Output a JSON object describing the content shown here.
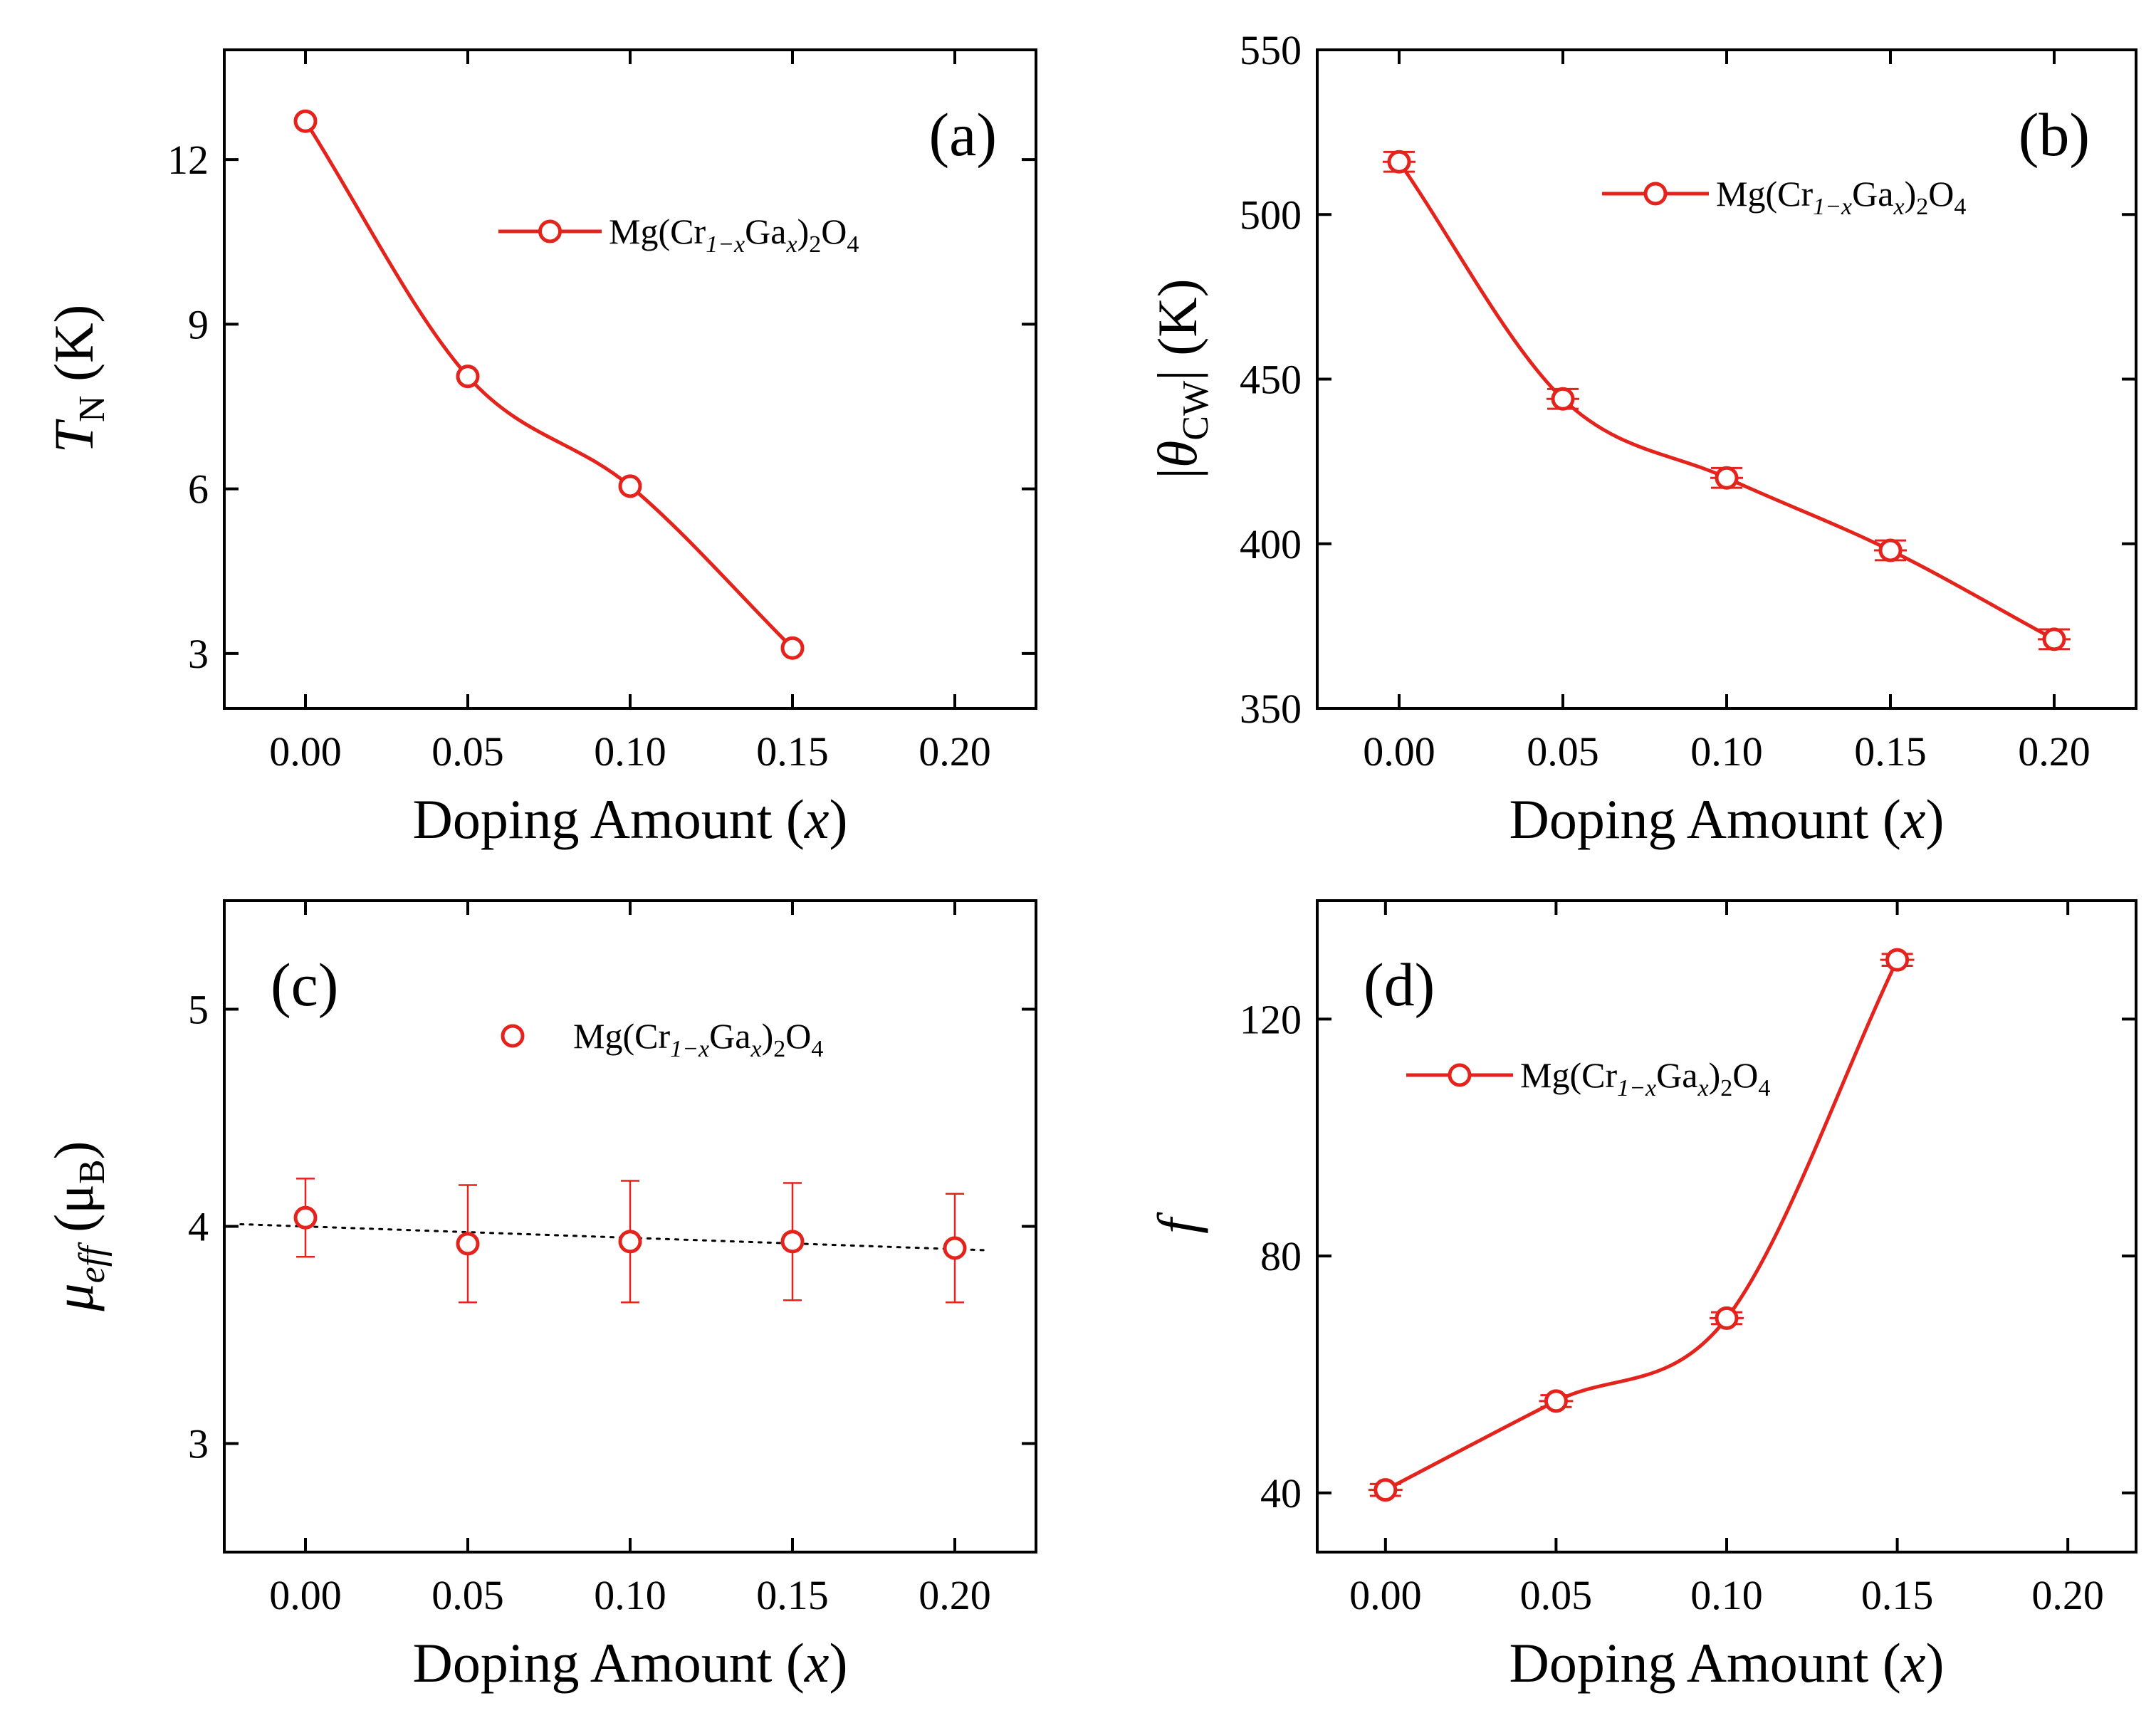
{
  "colors": {
    "series": "#e3231c",
    "axis": "#000000",
    "fit_line": "#000000",
    "background": "#ffffff"
  },
  "legend_text": {
    "base": "Mg(Cr",
    "sub1": "1−x",
    "mid": "Ga",
    "sub2": "x",
    "close": ")",
    "sub3": "2",
    "o": "O",
    "sub4": "4"
  },
  "xlabel": {
    "text": "Doping Amount (",
    "var": "x",
    "close": ")"
  },
  "chart_data": [
    {
      "panel": "(a)",
      "type": "line",
      "ylabel": {
        "main": "T",
        "sub": "N",
        "unit": " (K)"
      },
      "x": [
        0.0,
        0.05,
        0.1,
        0.15
      ],
      "y": [
        12.7,
        8.05,
        6.05,
        3.1
      ],
      "yerr": null,
      "xlim": [
        -0.025,
        0.225
      ],
      "ylim": [
        2.0,
        14.0
      ],
      "xticks": [
        "0.00",
        "0.05",
        "0.10",
        "0.15",
        "0.20"
      ],
      "xtick_values": [
        0.0,
        0.05,
        0.1,
        0.15,
        0.2
      ],
      "yticks": [
        "3",
        "6",
        "9",
        "12"
      ],
      "ytick_values": [
        3,
        6,
        9,
        12
      ],
      "series_name": "Mg(Cr1−xGax)2O4",
      "legend": "upper-right",
      "smooth": true,
      "fit_line": null
    },
    {
      "panel": "(b)",
      "type": "line",
      "ylabel": {
        "pre": "|",
        "main": "θ",
        "sub": "CW",
        "unit": "| (K)"
      },
      "x": [
        0.0,
        0.05,
        0.1,
        0.15,
        0.2
      ],
      "y": [
        516,
        444,
        420,
        398,
        371
      ],
      "yerr": [
        3,
        3,
        3,
        3,
        3
      ],
      "xerr": 0.005,
      "xlim": [
        -0.025,
        0.225
      ],
      "ylim": [
        350,
        550
      ],
      "xticks": [
        "0.00",
        "0.05",
        "0.10",
        "0.15",
        "0.20"
      ],
      "xtick_values": [
        0.0,
        0.05,
        0.1,
        0.15,
        0.2
      ],
      "yticks": [
        "350",
        "400",
        "450",
        "500",
        "550"
      ],
      "ytick_values": [
        350,
        400,
        450,
        500,
        550
      ],
      "series_name": "Mg(Cr1−xGax)2O4",
      "legend": "upper-right",
      "smooth": true,
      "fit_line": null
    },
    {
      "panel": "(c)",
      "type": "scatter",
      "ylabel": {
        "main": "μ",
        "sub": "eff",
        "unit": " (μ",
        "unit_sub": "B",
        "close": ")"
      },
      "x": [
        0.0,
        0.05,
        0.1,
        0.15,
        0.2
      ],
      "y": [
        4.04,
        3.92,
        3.93,
        3.93,
        3.9
      ],
      "yerr": [
        0.18,
        0.27,
        0.28,
        0.27,
        0.25
      ],
      "xlim": [
        -0.025,
        0.225
      ],
      "ylim": [
        2.5,
        5.5
      ],
      "xticks": [
        "0.00",
        "0.05",
        "0.10",
        "0.15",
        "0.20"
      ],
      "xtick_values": [
        0.0,
        0.05,
        0.1,
        0.15,
        0.2
      ],
      "yticks": [
        "3",
        "4",
        "5"
      ],
      "ytick_values": [
        3,
        4,
        5
      ],
      "series_name": "Mg(Cr1−xGax)2O4",
      "legend": "upper-right",
      "smooth": false,
      "fit_line": {
        "x": [
          -0.02,
          0.21
        ],
        "y": [
          4.01,
          3.89
        ]
      }
    },
    {
      "panel": "(d)",
      "type": "line",
      "ylabel": {
        "main": "f",
        "sub": "",
        "unit": ""
      },
      "x": [
        0.0,
        0.05,
        0.1,
        0.15
      ],
      "y": [
        40.5,
        55.5,
        69.5,
        130
      ],
      "yerr": [
        1,
        1,
        1,
        1
      ],
      "xerr": 0.005,
      "xlim": [
        -0.02,
        0.22
      ],
      "ylim": [
        30,
        140
      ],
      "xticks": [
        "0.00",
        "0.05",
        "0.10",
        "0.15",
        "0.20"
      ],
      "xtick_values": [
        0.0,
        0.05,
        0.1,
        0.15,
        0.2
      ],
      "yticks": [
        "40",
        "80",
        "120"
      ],
      "ytick_values": [
        40,
        80,
        120
      ],
      "series_name": "Mg(Cr1−xGax)2O4",
      "legend": "upper-left",
      "smooth": true,
      "fit_line": null
    }
  ]
}
